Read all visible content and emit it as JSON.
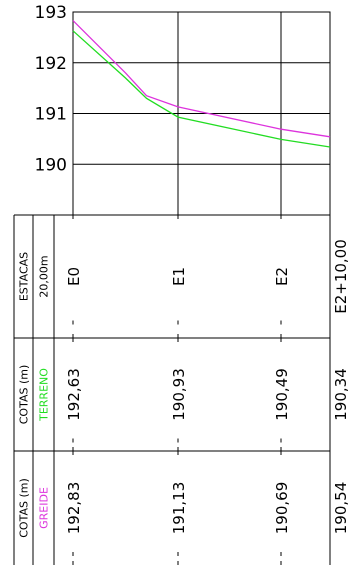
{
  "chart_data": {
    "type": "line",
    "y_axis": {
      "ylim": [
        189.0,
        193.0
      ],
      "ticks": [
        193,
        192,
        191,
        190
      ]
    },
    "stations": [
      "E0",
      "E1",
      "E2",
      "E2+10,00"
    ],
    "series": [
      {
        "name": "TERRENO",
        "color": "#22dd22",
        "points": [
          [
            0,
            192.63
          ],
          [
            10,
            191.7
          ],
          [
            14,
            191.3
          ],
          [
            20,
            190.93
          ],
          [
            40,
            190.49
          ],
          [
            50,
            190.34
          ]
        ]
      },
      {
        "name": "GREIDE",
        "color": "#dd33dd",
        "points": [
          [
            0,
            192.83
          ],
          [
            10,
            191.8
          ],
          [
            14,
            191.35
          ],
          [
            20,
            191.13
          ],
          [
            40,
            190.69
          ],
          [
            50,
            190.54
          ]
        ]
      }
    ],
    "table": {
      "rows": [
        {
          "key": "estacas",
          "title": "ESTACAS",
          "subtitle": "20,00m",
          "subtitle_color": "#000000",
          "values": [
            "E0",
            "E1",
            "E2",
            "E2+10,00"
          ]
        },
        {
          "key": "terreno",
          "title": "COTAS (m)",
          "subtitle": "TERRENO",
          "subtitle_color": "#22dd22",
          "values": [
            "192,63",
            "190,93",
            "190,49",
            "190,34"
          ]
        },
        {
          "key": "greide",
          "title": "COTAS (m)",
          "subtitle": "GREIDE",
          "subtitle_color": "#dd33dd",
          "values": [
            "192,83",
            "191,13",
            "190,69",
            "190,54"
          ]
        }
      ]
    }
  }
}
